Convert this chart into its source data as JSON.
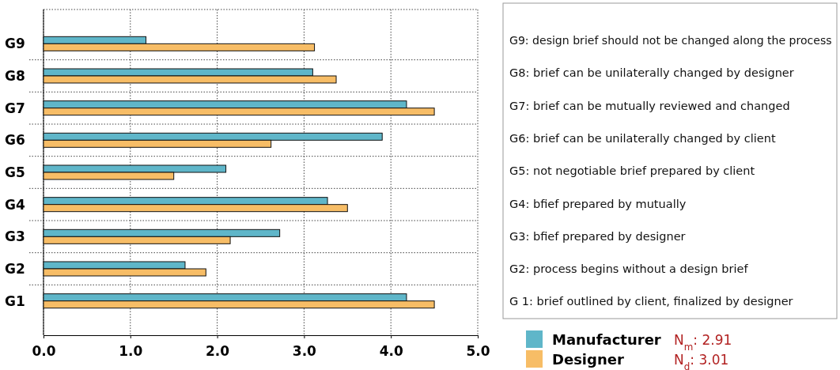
{
  "chart_data": {
    "type": "bar",
    "orientation": "horizontal",
    "categories": [
      "G9",
      "G8",
      "G7",
      "G6",
      "G5",
      "G4",
      "G3",
      "G2",
      "G1"
    ],
    "series": [
      {
        "name": "Manufacturer",
        "color": "#5fb6c9",
        "values": [
          1.18,
          3.1,
          4.18,
          3.9,
          2.1,
          3.27,
          2.72,
          1.63,
          4.18
        ]
      },
      {
        "name": "Designer",
        "color": "#f7bd66",
        "values": [
          3.12,
          3.37,
          4.5,
          2.62,
          1.5,
          3.5,
          2.15,
          1.87,
          4.5
        ]
      }
    ],
    "xlim": [
      0,
      5
    ],
    "xticks": [
      {
        "value": 0,
        "label": "0.0"
      },
      {
        "value": 1,
        "label": "1.0"
      },
      {
        "value": 2,
        "label": "2.0"
      },
      {
        "value": 3,
        "label": "3.0"
      },
      {
        "value": 4,
        "label": "4.0"
      },
      {
        "value": 5,
        "label": "5.0"
      }
    ],
    "grid": true,
    "legend": "bottom right",
    "annotations": [
      "G9: design brief should not be changed along the process",
      "G8: brief can be unilaterally changed by designer",
      "G7: brief can be mutually reviewed and changed",
      "G6: brief can be unilaterally changed by client",
      "G5: not negotiable brief prepared by client",
      "G4: bfief prepared by mutually",
      "G3: bfief prepared by designer",
      "G2: process  begins without a design brief",
      "G 1: brief outlined by client, finalized by designer",
      "N$_{m}$: 2.91",
      "N$_{d}$: 3.01"
    ]
  }
}
